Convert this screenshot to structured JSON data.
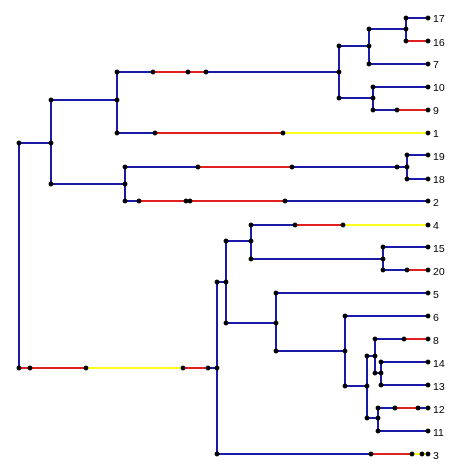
{
  "colors": {
    "blue": "#1a1aa8",
    "red": "#e02020",
    "yellow": "#ffff20",
    "node": "#000000",
    "background": "#ffffff"
  },
  "leaves": {
    "l17": "17",
    "l16": "16",
    "l7": "7",
    "l10": "10",
    "l9": "9",
    "l1": "1",
    "l19": "19",
    "l18": "18",
    "l2": "2",
    "l4": "4",
    "l15": "15",
    "l20": "20",
    "l5": "5",
    "l6": "6",
    "l8": "8",
    "l14": "14",
    "l13": "13",
    "l12": "12",
    "l11": "11",
    "l3": "3"
  }
}
